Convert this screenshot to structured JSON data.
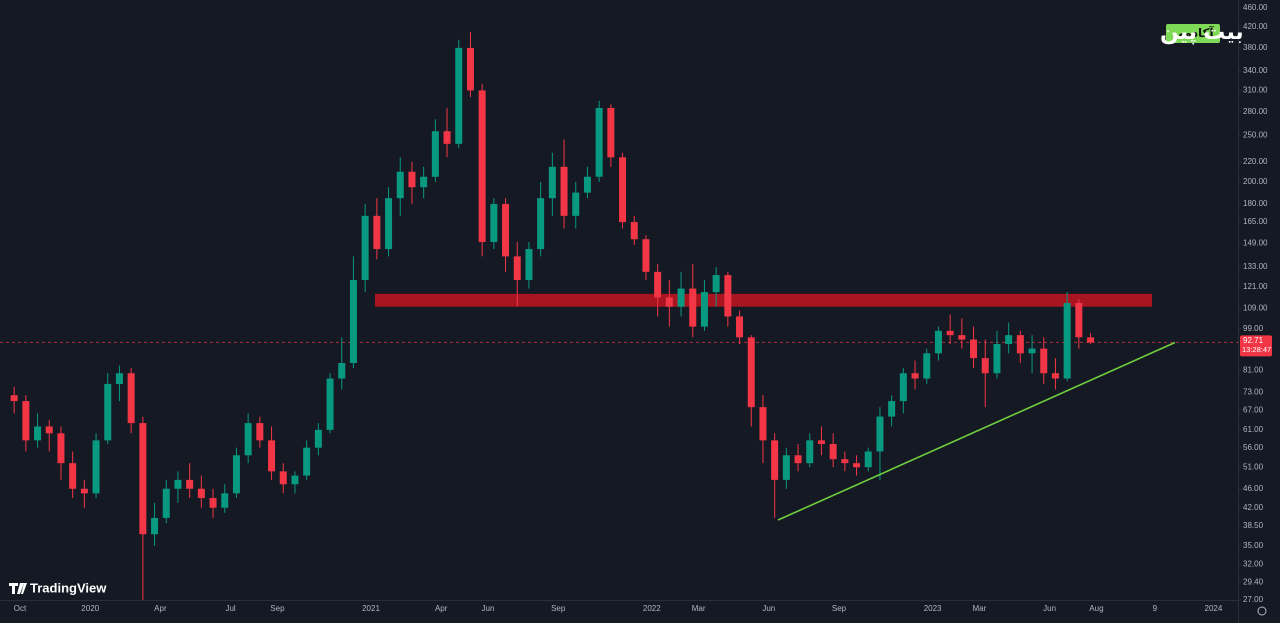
{
  "chart_data": {
    "type": "candlestick",
    "log_scale": true,
    "grid": false,
    "up_color": "#089981",
    "down_color": "#f23645",
    "ylim": [
      27,
      478
    ],
    "yticks": [
      {
        "value": 27,
        "label": "27.00"
      },
      {
        "value": 29.4,
        "label": "29.40"
      },
      {
        "value": 32,
        "label": "32.00"
      },
      {
        "value": 35,
        "label": "35.00"
      },
      {
        "value": 38.5,
        "label": "38.50"
      },
      {
        "value": 42,
        "label": "42.00"
      },
      {
        "value": 46,
        "label": "46.00"
      },
      {
        "value": 51,
        "label": "51.00"
      },
      {
        "value": 56,
        "label": "56.00"
      },
      {
        "value": 61,
        "label": "61.00"
      },
      {
        "value": 67,
        "label": "67.00"
      },
      {
        "value": 73,
        "label": "73.00"
      },
      {
        "value": 81,
        "label": "81.00"
      },
      {
        "value": 99,
        "label": "99.00"
      },
      {
        "value": 109,
        "label": "109.00"
      },
      {
        "value": 121,
        "label": "121.00"
      },
      {
        "value": 133,
        "label": "133.00"
      },
      {
        "value": 149,
        "label": "149.00"
      },
      {
        "value": 165,
        "label": "165.00"
      },
      {
        "value": 180,
        "label": "180.00"
      },
      {
        "value": 200,
        "label": "200.00"
      },
      {
        "value": 220,
        "label": "220.00"
      },
      {
        "value": 250,
        "label": "250.00"
      },
      {
        "value": 280,
        "label": "280.00"
      },
      {
        "value": 310,
        "label": "310.00"
      },
      {
        "value": 340,
        "label": "340.00"
      },
      {
        "value": 380,
        "label": "380.00"
      },
      {
        "value": 420,
        "label": "420.00"
      },
      {
        "value": 460,
        "label": "460.00"
      }
    ],
    "categories": [
      null,
      "Oct",
      null,
      null,
      null,
      null,
      null,
      "2020",
      null,
      null,
      null,
      null,
      null,
      "Apr",
      null,
      null,
      null,
      null,
      null,
      "Jul",
      null,
      null,
      null,
      "Sep",
      null,
      null,
      null,
      null,
      null,
      null,
      null,
      "2021",
      null,
      null,
      null,
      null,
      null,
      "Apr",
      null,
      null,
      null,
      "Jun",
      null,
      null,
      null,
      null,
      null,
      "Sep",
      null,
      null,
      null,
      null,
      null,
      null,
      null,
      "2022",
      null,
      null,
      null,
      "Mar",
      null,
      null,
      null,
      null,
      null,
      "Jun",
      null,
      null,
      null,
      null,
      null,
      "Sep",
      null,
      null,
      null,
      null,
      null,
      null,
      null,
      "2023",
      null,
      null,
      null,
      "Mar",
      null,
      null,
      null,
      null,
      null,
      "Jun",
      null,
      null,
      null,
      "Aug",
      null,
      null,
      null,
      null,
      "9",
      null,
      null,
      null,
      null,
      "2024",
      null
    ],
    "ohlc": [
      [
        72,
        75,
        66,
        70
      ],
      [
        70,
        72,
        55,
        58
      ],
      [
        58,
        66,
        56,
        62
      ],
      [
        62,
        64,
        55,
        60
      ],
      [
        60,
        62,
        48,
        52
      ],
      [
        52,
        55,
        44,
        46
      ],
      [
        46,
        48,
        42,
        45
      ],
      [
        45,
        60,
        44,
        58
      ],
      [
        58,
        80,
        57,
        76
      ],
      [
        76,
        83,
        70,
        80
      ],
      [
        80,
        82,
        60,
        63
      ],
      [
        63,
        65,
        27,
        37
      ],
      [
        37,
        43,
        35,
        40
      ],
      [
        40,
        48,
        39,
        46
      ],
      [
        46,
        50,
        43,
        48
      ],
      [
        48,
        52,
        44,
        46
      ],
      [
        46,
        49,
        42,
        44
      ],
      [
        44,
        46,
        40,
        42
      ],
      [
        42,
        47,
        41,
        45
      ],
      [
        45,
        56,
        44,
        54
      ],
      [
        54,
        66,
        52,
        63
      ],
      [
        63,
        65,
        56,
        58
      ],
      [
        58,
        62,
        48,
        50
      ],
      [
        50,
        52,
        45,
        47
      ],
      [
        47,
        50,
        45,
        49
      ],
      [
        49,
        58,
        48,
        56
      ],
      [
        56,
        63,
        54,
        61
      ],
      [
        61,
        80,
        60,
        78
      ],
      [
        78,
        95,
        74,
        84
      ],
      [
        84,
        140,
        82,
        125
      ],
      [
        125,
        180,
        118,
        170
      ],
      [
        170,
        185,
        138,
        145
      ],
      [
        145,
        195,
        140,
        185
      ],
      [
        185,
        225,
        170,
        210
      ],
      [
        210,
        220,
        180,
        195
      ],
      [
        195,
        215,
        185,
        205
      ],
      [
        205,
        270,
        200,
        255
      ],
      [
        255,
        285,
        225,
        240
      ],
      [
        240,
        395,
        235,
        380
      ],
      [
        380,
        410,
        300,
        310
      ],
      [
        310,
        320,
        140,
        150
      ],
      [
        150,
        185,
        145,
        180
      ],
      [
        180,
        185,
        130,
        140
      ],
      [
        140,
        150,
        110,
        125
      ],
      [
        125,
        150,
        120,
        145
      ],
      [
        145,
        200,
        140,
        185
      ],
      [
        185,
        230,
        170,
        215
      ],
      [
        215,
        245,
        160,
        170
      ],
      [
        170,
        200,
        160,
        190
      ],
      [
        190,
        215,
        185,
        205
      ],
      [
        205,
        295,
        200,
        285
      ],
      [
        285,
        290,
        215,
        225
      ],
      [
        225,
        230,
        160,
        165
      ],
      [
        165,
        170,
        148,
        152
      ],
      [
        152,
        155,
        125,
        130
      ],
      [
        130,
        135,
        105,
        115
      ],
      [
        115,
        125,
        100,
        110
      ],
      [
        110,
        130,
        105,
        120
      ],
      [
        120,
        135,
        95,
        100
      ],
      [
        100,
        125,
        98,
        118
      ],
      [
        118,
        133,
        110,
        128
      ],
      [
        128,
        130,
        100,
        105
      ],
      [
        105,
        108,
        92,
        95
      ],
      [
        95,
        96,
        62,
        68
      ],
      [
        68,
        72,
        52,
        58
      ],
      [
        58,
        60,
        40,
        48
      ],
      [
        48,
        56,
        46,
        54
      ],
      [
        54,
        57,
        50,
        52
      ],
      [
        52,
        60,
        51,
        58
      ],
      [
        58,
        62,
        54,
        57
      ],
      [
        57,
        60,
        51,
        53
      ],
      [
        53,
        55,
        50,
        52
      ],
      [
        52,
        54,
        49,
        51
      ],
      [
        51,
        56,
        50,
        55
      ],
      [
        55,
        68,
        48,
        65
      ],
      [
        65,
        72,
        62,
        70
      ],
      [
        70,
        82,
        66,
        80
      ],
      [
        80,
        85,
        74,
        78
      ],
      [
        78,
        90,
        76,
        88
      ],
      [
        88,
        100,
        85,
        98
      ],
      [
        98,
        106,
        92,
        96
      ],
      [
        96,
        104,
        90,
        94
      ],
      [
        94,
        100,
        82,
        86
      ],
      [
        86,
        94,
        68,
        80
      ],
      [
        80,
        98,
        78,
        92
      ],
      [
        92,
        102,
        88,
        96
      ],
      [
        96,
        98,
        84,
        88
      ],
      [
        88,
        96,
        80,
        90
      ],
      [
        90,
        95,
        76,
        80
      ],
      [
        80,
        86,
        74,
        78
      ],
      [
        78,
        118,
        77,
        112
      ],
      [
        112,
        114,
        90,
        95
      ],
      [
        95,
        97,
        92,
        92.71
      ],
      null,
      null,
      null,
      null,
      null,
      null,
      null,
      null,
      null,
      null,
      null,
      null
    ],
    "last_price": 92.71,
    "last_price_color": "#f23645",
    "countdown": "13:28:47",
    "resistance_zone": {
      "low": 110,
      "high": 117,
      "color": "#a8141f"
    },
    "trendline": {
      "start": 39.6,
      "end": 92.7,
      "color": "#6fcf3f"
    },
    "watermark": "TradingView",
    "brand": {
      "name": "بیت پین",
      "tag": "آکادمی"
    }
  }
}
